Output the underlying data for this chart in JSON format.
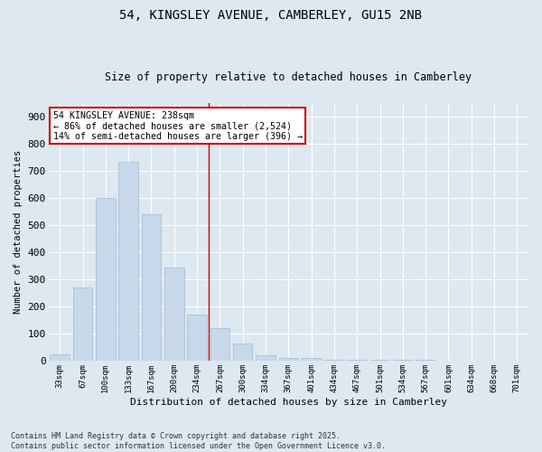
{
  "title1": "54, KINGSLEY AVENUE, CAMBERLEY, GU15 2NB",
  "title2": "Size of property relative to detached houses in Camberley",
  "xlabel": "Distribution of detached houses by size in Camberley",
  "ylabel": "Number of detached properties",
  "categories": [
    "33sqm",
    "67sqm",
    "100sqm",
    "133sqm",
    "167sqm",
    "200sqm",
    "234sqm",
    "267sqm",
    "300sqm",
    "334sqm",
    "367sqm",
    "401sqm",
    "434sqm",
    "467sqm",
    "501sqm",
    "534sqm",
    "567sqm",
    "601sqm",
    "634sqm",
    "668sqm",
    "701sqm"
  ],
  "values": [
    25,
    270,
    600,
    735,
    540,
    345,
    170,
    120,
    65,
    20,
    10,
    10,
    5,
    5,
    5,
    5,
    5,
    3,
    3,
    3,
    0
  ],
  "bar_color": "#c8d8eb",
  "bar_edge_color": "#aabfd4",
  "background_color": "#dde8f0",
  "fig_background_color": "#dde8f0",
  "vline_color": "#cc0000",
  "annotation_text": "54 KINGSLEY AVENUE: 238sqm\n← 86% of detached houses are smaller (2,524)\n14% of semi-detached houses are larger (396) →",
  "annotation_box_color": "#ffffff",
  "annotation_edge_color": "#cc0000",
  "footer_text": "Contains HM Land Registry data © Crown copyright and database right 2025.\nContains public sector information licensed under the Open Government Licence v3.0.",
  "ylim": [
    0,
    950
  ],
  "yticks": [
    0,
    100,
    200,
    300,
    400,
    500,
    600,
    700,
    800,
    900
  ],
  "vline_index": 6.5
}
